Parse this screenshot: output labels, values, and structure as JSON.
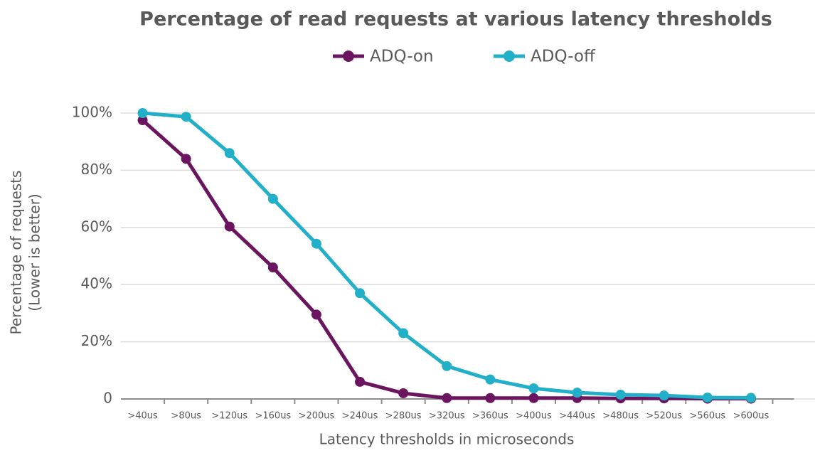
{
  "chart_data": {
    "type": "line",
    "title": "Percentage of read requests at various latency thresholds",
    "xlabel": "Latency thresholds in microseconds",
    "ylabel": [
      "Percentage of requests",
      "(Lower is better)"
    ],
    "categories": [
      ">40us",
      ">80us",
      ">120us",
      ">160us",
      ">200us",
      ">240us",
      ">280us",
      ">320us",
      ">360us",
      ">400us",
      ">440us",
      ">480us",
      ">520us",
      ">560us",
      ">600us"
    ],
    "series": [
      {
        "name": "ADQ-on",
        "color": "#6b1460",
        "values": [
          97.5,
          84,
          60.3,
          46,
          29.5,
          6,
          2,
          0.3,
          0.3,
          0.3,
          0.3,
          0.2,
          0.2,
          0.1,
          0.1
        ]
      },
      {
        "name": "ADQ-off",
        "color": "#22afc8",
        "values": [
          100,
          98.7,
          86,
          70,
          54.3,
          37,
          23,
          11.5,
          6.8,
          3.7,
          2.2,
          1.5,
          1.2,
          0.5,
          0.4
        ]
      }
    ],
    "ylim": [
      0,
      100
    ],
    "yticks": [
      0,
      {
        "value": 20,
        "label": "20%"
      },
      {
        "value": 40,
        "label": "40%"
      },
      {
        "value": 60,
        "label": "60%"
      },
      {
        "value": 80,
        "label": "80%"
      },
      {
        "value": 100,
        "label": "100%"
      }
    ],
    "grid": true,
    "legend": "top"
  }
}
